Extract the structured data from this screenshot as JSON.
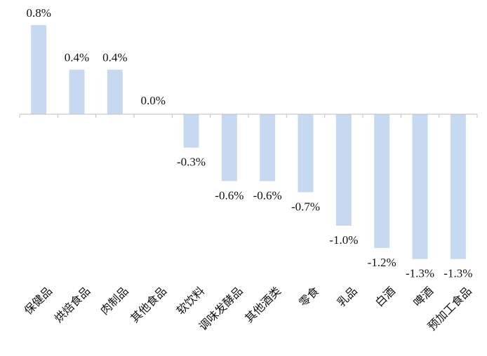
{
  "chart_data": {
    "type": "bar",
    "categories": [
      "保健品",
      "烘焙食品",
      "肉制品",
      "其他食品",
      "软饮料",
      "调味发酵品",
      "其他酒类",
      "零食",
      "乳品",
      "白酒",
      "啤酒",
      "预加工食品"
    ],
    "values": [
      0.8,
      0.4,
      0.4,
      0.0,
      -0.3,
      -0.6,
      -0.6,
      -0.7,
      -1.0,
      -1.2,
      -1.3,
      -1.3
    ],
    "data_labels": [
      "0.8%",
      "0.4%",
      "0.4%",
      "0.0%",
      "-0.3%",
      "-0.6%",
      "-0.6%",
      "-0.7%",
      "-1.0%",
      "-1.2%",
      "-1.3%",
      "-1.3%"
    ],
    "title": "",
    "xlabel": "",
    "ylabel": "",
    "value_unit": "%",
    "grid": false,
    "legend": "none",
    "bar_color": "#c6d9f1"
  }
}
